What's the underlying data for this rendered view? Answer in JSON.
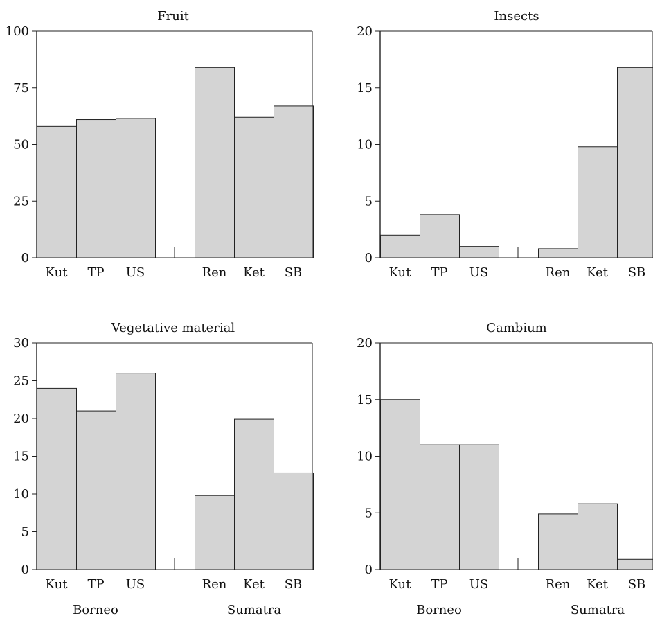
{
  "chart_data": [
    {
      "type": "bar",
      "title": "Fruit",
      "ylim": [
        0,
        100
      ],
      "yticks": [
        0,
        25,
        50,
        75,
        100
      ],
      "categories": [
        "Kut",
        "TP",
        "US",
        "Ren",
        "Ket",
        "SB"
      ],
      "values": [
        58,
        61,
        61.5,
        84,
        62,
        67
      ],
      "groups": [],
      "bar_color": "#d4d4d4",
      "grid": false
    },
    {
      "type": "bar",
      "title": "Insects",
      "ylim": [
        0,
        20
      ],
      "yticks": [
        0,
        5,
        10,
        15,
        20
      ],
      "categories": [
        "Kut",
        "TP",
        "US",
        "Ren",
        "Ket",
        "SB"
      ],
      "values": [
        2,
        3.8,
        1,
        0.8,
        9.8,
        16.8
      ],
      "groups": [],
      "bar_color": "#d4d4d4",
      "grid": false
    },
    {
      "type": "bar",
      "title": "Vegetative material",
      "ylim": [
        0,
        30
      ],
      "yticks": [
        0,
        5,
        10,
        15,
        20,
        25,
        30
      ],
      "categories": [
        "Kut",
        "TP",
        "US",
        "Ren",
        "Ket",
        "SB"
      ],
      "values": [
        24,
        21,
        26,
        9.8,
        19.9,
        12.8
      ],
      "groups": [
        "Borneo",
        "Sumatra"
      ],
      "bar_color": "#d4d4d4",
      "grid": false
    },
    {
      "type": "bar",
      "title": "Cambium",
      "ylim": [
        0,
        20
      ],
      "yticks": [
        0,
        5,
        10,
        15,
        20
      ],
      "categories": [
        "Kut",
        "TP",
        "US",
        "Ren",
        "Ket",
        "SB"
      ],
      "values": [
        15,
        11,
        11,
        4.9,
        5.8,
        0.9
      ],
      "groups": [
        "Borneo",
        "Sumatra"
      ],
      "bar_color": "#d4d4d4",
      "grid": false
    }
  ]
}
